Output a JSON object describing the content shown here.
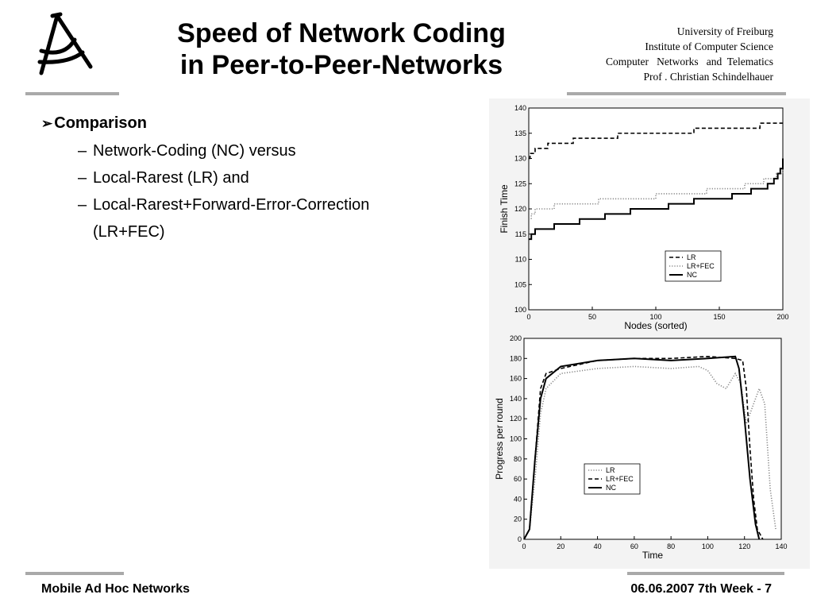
{
  "slide": {
    "title_line1": "Speed of Network Coding",
    "title_line2": "in Peer-to-Peer-Networks",
    "institution": [
      "University of Freiburg",
      "Institute of Computer Science",
      "Computer   Networks   and  Telematics",
      "Prof . Christian Schindelhauer"
    ],
    "bullet_main": "Comparison",
    "bullet_sub": [
      "Network-Coding (NC) versus",
      "Local-Rarest (LR) and",
      "Local-Rarest+Forward-Error-Correction (LR+FEC)"
    ],
    "footer_left": "Mobile Ad Hoc Networks",
    "footer_right": "06.06.2007 7th Week - 7"
  },
  "chart_data": [
    {
      "type": "line",
      "xlabel": "Nodes (sorted)",
      "ylabel": "Finish Time",
      "xlim": [
        0,
        200
      ],
      "ylim": [
        100,
        140
      ],
      "xticks": [
        0,
        50,
        100,
        150,
        200
      ],
      "yticks": [
        100,
        105,
        110,
        115,
        120,
        125,
        130,
        135,
        140
      ],
      "legend_position": "lower-right",
      "series": [
        {
          "name": "LR",
          "style": "dashed",
          "points": [
            [
              0,
              130
            ],
            [
              1,
              131
            ],
            [
              5,
              132
            ],
            [
              15,
              133
            ],
            [
              35,
              134
            ],
            [
              70,
              135
            ],
            [
              130,
              136
            ],
            [
              182,
              137
            ],
            [
              200,
              137
            ]
          ]
        },
        {
          "name": "LR+FEC",
          "style": "dotted",
          "points": [
            [
              0,
              118
            ],
            [
              2,
              119
            ],
            [
              5,
              120
            ],
            [
              20,
              121
            ],
            [
              55,
              122
            ],
            [
              100,
              123
            ],
            [
              140,
              124
            ],
            [
              170,
              125
            ],
            [
              185,
              126
            ],
            [
              195,
              127
            ],
            [
              200,
              128
            ]
          ]
        },
        {
          "name": "NC",
          "style": "solid",
          "points": [
            [
              0,
              114
            ],
            [
              2,
              115
            ],
            [
              5,
              116
            ],
            [
              20,
              117
            ],
            [
              40,
              118
            ],
            [
              60,
              119
            ],
            [
              80,
              120
            ],
            [
              110,
              121
            ],
            [
              130,
              122
            ],
            [
              160,
              123
            ],
            [
              175,
              124
            ],
            [
              188,
              125
            ],
            [
              193,
              126
            ],
            [
              196,
              127
            ],
            [
              198,
              128
            ],
            [
              200,
              130
            ]
          ]
        }
      ]
    },
    {
      "type": "line",
      "xlabel": "Time",
      "ylabel": "Progress per round",
      "xlim": [
        0,
        140
      ],
      "ylim": [
        0,
        200
      ],
      "xticks": [
        0,
        20,
        40,
        60,
        80,
        100,
        120,
        140
      ],
      "yticks": [
        0,
        20,
        40,
        60,
        80,
        100,
        120,
        140,
        160,
        180,
        200
      ],
      "legend_position": "lower-right",
      "series": [
        {
          "name": "LR",
          "style": "dotted",
          "points": [
            [
              0,
              0
            ],
            [
              3,
              10
            ],
            [
              6,
              60
            ],
            [
              9,
              125
            ],
            [
              12,
              150
            ],
            [
              20,
              165
            ],
            [
              40,
              170
            ],
            [
              60,
              172
            ],
            [
              80,
              170
            ],
            [
              95,
              172
            ],
            [
              100,
              168
            ],
            [
              105,
              155
            ],
            [
              110,
              150
            ],
            [
              115,
              165
            ],
            [
              118,
              155
            ],
            [
              121,
              115
            ],
            [
              124,
              130
            ],
            [
              128,
              150
            ],
            [
              131,
              135
            ],
            [
              134,
              50
            ],
            [
              137,
              10
            ]
          ]
        },
        {
          "name": "LR+FEC",
          "style": "dashed",
          "points": [
            [
              0,
              0
            ],
            [
              3,
              10
            ],
            [
              6,
              80
            ],
            [
              9,
              150
            ],
            [
              12,
              165
            ],
            [
              20,
              170
            ],
            [
              40,
              178
            ],
            [
              60,
              180
            ],
            [
              80,
              180
            ],
            [
              100,
              182
            ],
            [
              115,
              180
            ],
            [
              119,
              178
            ],
            [
              121,
              150
            ],
            [
              123,
              90
            ],
            [
              125,
              40
            ],
            [
              127,
              10
            ],
            [
              130,
              0
            ]
          ]
        },
        {
          "name": "NC",
          "style": "solid",
          "points": [
            [
              0,
              0
            ],
            [
              3,
              10
            ],
            [
              6,
              80
            ],
            [
              9,
              140
            ],
            [
              12,
              160
            ],
            [
              20,
              172
            ],
            [
              40,
              178
            ],
            [
              60,
              180
            ],
            [
              80,
              178
            ],
            [
              100,
              180
            ],
            [
              115,
              182
            ],
            [
              117,
              170
            ],
            [
              120,
              120
            ],
            [
              123,
              60
            ],
            [
              126,
              15
            ],
            [
              128,
              0
            ]
          ]
        }
      ]
    }
  ]
}
